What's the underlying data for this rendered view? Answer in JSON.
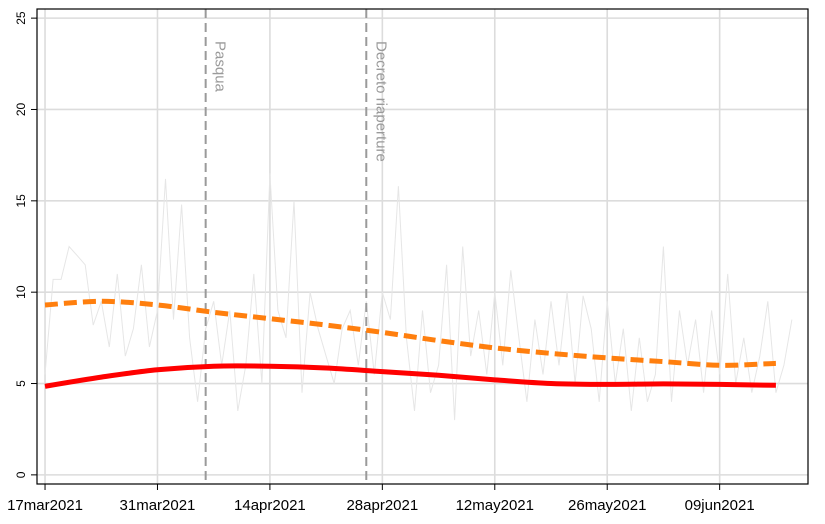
{
  "chart_data": {
    "type": "line",
    "x_start_date": "2021-03-17",
    "xticks": [
      "17mar2021",
      "31mar2021",
      "14apr2021",
      "28apr2021",
      "12may2021",
      "26may2021",
      "09jun2021"
    ],
    "xtick_dates": [
      "2021-03-17",
      "2021-03-31",
      "2021-04-14",
      "2021-04-28",
      "2021-05-12",
      "2021-05-26",
      "2021-06-09"
    ],
    "yticks": [
      0,
      5,
      10,
      15,
      20,
      25
    ],
    "ylim": [
      -0.5,
      25.5
    ],
    "xlim": [
      "2021-03-16",
      "2021-06-20"
    ],
    "grid": true,
    "annotations": [
      {
        "label": "Pasqua",
        "date": "2021-04-06",
        "style": "dashed",
        "color": "#9a9a9a"
      },
      {
        "label": "Decreto riaperture",
        "date": "2021-04-26",
        "style": "dashed",
        "color": "#9a9a9a"
      }
    ],
    "series": [
      {
        "style": "raw",
        "color": "#e6e6e6",
        "dates": [
          "2021-03-17",
          "2021-03-18",
          "2021-03-19",
          "2021-03-20",
          "2021-03-21",
          "2021-03-22",
          "2021-03-23",
          "2021-03-24",
          "2021-03-25",
          "2021-03-26",
          "2021-03-27",
          "2021-03-28",
          "2021-03-29",
          "2021-03-30",
          "2021-03-31",
          "2021-04-01",
          "2021-04-02",
          "2021-04-03",
          "2021-04-04",
          "2021-04-05",
          "2021-04-06",
          "2021-04-07",
          "2021-04-08",
          "2021-04-09",
          "2021-04-10",
          "2021-04-11",
          "2021-04-12",
          "2021-04-13",
          "2021-04-14",
          "2021-04-15",
          "2021-04-16",
          "2021-04-17",
          "2021-04-18",
          "2021-04-19",
          "2021-04-20",
          "2021-04-21",
          "2021-04-22",
          "2021-04-23",
          "2021-04-24",
          "2021-04-25",
          "2021-04-26",
          "2021-04-27",
          "2021-04-28",
          "2021-04-29",
          "2021-04-30",
          "2021-05-01",
          "2021-05-02",
          "2021-05-03",
          "2021-05-04",
          "2021-05-05",
          "2021-05-06",
          "2021-05-07",
          "2021-05-08",
          "2021-05-09",
          "2021-05-10",
          "2021-05-11",
          "2021-05-12",
          "2021-05-13",
          "2021-05-14",
          "2021-05-15",
          "2021-05-16",
          "2021-05-17",
          "2021-05-18",
          "2021-05-19",
          "2021-05-20",
          "2021-05-21",
          "2021-05-22",
          "2021-05-23",
          "2021-05-24",
          "2021-05-25",
          "2021-05-26",
          "2021-05-27",
          "2021-05-28",
          "2021-05-29",
          "2021-05-30",
          "2021-05-31",
          "2021-06-01",
          "2021-06-02",
          "2021-06-03",
          "2021-06-04",
          "2021-06-05",
          "2021-06-06",
          "2021-06-07",
          "2021-06-08",
          "2021-06-09",
          "2021-06-10",
          "2021-06-11",
          "2021-06-12",
          "2021-06-13",
          "2021-06-14",
          "2021-06-15",
          "2021-06-16",
          "2021-06-17",
          "2021-06-18"
        ],
        "values": [
          5.5,
          10.7,
          10.7,
          12.5,
          12.0,
          11.5,
          8.2,
          9.5,
          7.0,
          11.0,
          6.5,
          8.0,
          11.5,
          7.0,
          9.0,
          16.2,
          8.5,
          14.8,
          7.5,
          4.0,
          8.0,
          9.5,
          6.0,
          9.0,
          3.5,
          6.0,
          11.0,
          5.0,
          16.5,
          9.0,
          7.5,
          15.0,
          4.5,
          10.0,
          8.0,
          6.5,
          5.0,
          8.0,
          9.0,
          6.0,
          9.5,
          5.5,
          10.0,
          8.5,
          15.8,
          7.5,
          3.5,
          9.0,
          4.5,
          6.0,
          11.5,
          3.0,
          12.5,
          6.5,
          9.0,
          5.5,
          10.0,
          6.0,
          11.2,
          7.5,
          4.0,
          8.5,
          5.5,
          9.5,
          6.0,
          10.0,
          5.0,
          9.8,
          8.0,
          4.0,
          9.5,
          5.0,
          8.0,
          3.5,
          7.5,
          4.0,
          5.5,
          12.5,
          4.0,
          9.0,
          6.0,
          8.5,
          4.5,
          9.0,
          5.5,
          11.0,
          5.0,
          7.5,
          4.5,
          6.5,
          9.5,
          4.5,
          6.0,
          8.5
        ]
      },
      {
        "style": "dashed",
        "color": "#ff7f0e",
        "dates": [
          "2021-03-17",
          "2021-03-24",
          "2021-03-31",
          "2021-04-07",
          "2021-04-14",
          "2021-04-21",
          "2021-04-28",
          "2021-05-05",
          "2021-05-12",
          "2021-05-19",
          "2021-05-26",
          "2021-06-02",
          "2021-06-09",
          "2021-06-16"
        ],
        "values": [
          9.3,
          9.5,
          9.3,
          8.9,
          8.55,
          8.2,
          7.8,
          7.35,
          6.95,
          6.65,
          6.4,
          6.2,
          6.0,
          6.1
        ]
      },
      {
        "style": "solid",
        "color": "#ff0000",
        "dates": [
          "2021-03-17",
          "2021-03-24",
          "2021-03-31",
          "2021-04-07",
          "2021-04-14",
          "2021-04-21",
          "2021-04-28",
          "2021-05-05",
          "2021-05-12",
          "2021-05-19",
          "2021-05-26",
          "2021-06-02",
          "2021-06-09",
          "2021-06-16"
        ],
        "values": [
          4.85,
          5.35,
          5.75,
          5.95,
          5.95,
          5.85,
          5.65,
          5.45,
          5.2,
          5.0,
          4.95,
          4.98,
          4.95,
          4.9
        ]
      }
    ]
  }
}
